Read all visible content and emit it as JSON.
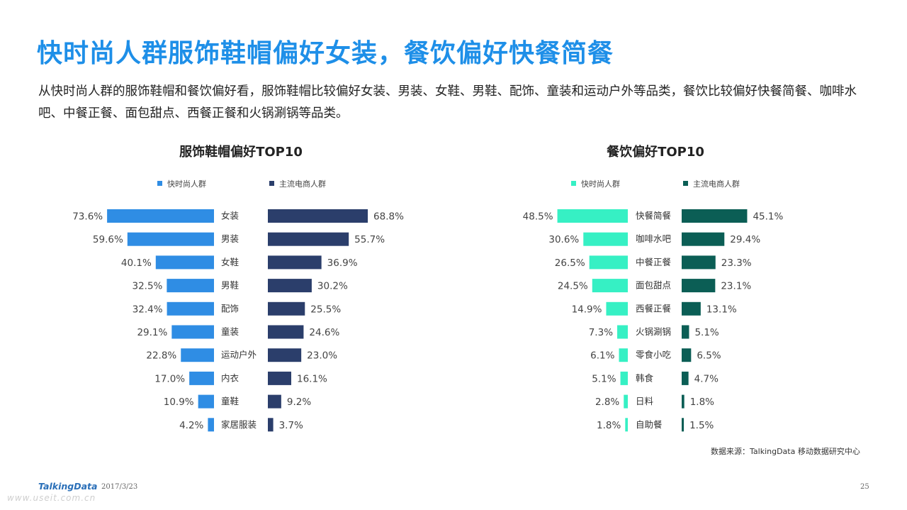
{
  "title": "快时尚人群服饰鞋帽偏好女装，餐饮偏好快餐简餐",
  "description": "从快时尚人群的服饰鞋帽和餐饮偏好看，服饰鞋帽比较偏好女装、男装、女鞋、男鞋、配饰、童装和运动户外等品类，餐饮比较偏好快餐简餐、咖啡水吧、中餐正餐、面包甜点、西餐正餐和火锅涮锅等品类。",
  "source": "数据来源：TalkingData 移动数据研究中心",
  "footer": {
    "logo": "TalkingData",
    "date": "2017/3/23",
    "page": "25",
    "watermark": "www.useit.com.cn"
  },
  "chart_data": [
    {
      "type": "bar",
      "title": "服饰鞋帽偏好TOP10",
      "categories": [
        "女装",
        "男装",
        "女鞋",
        "男鞋",
        "配饰",
        "童装",
        "运动户外",
        "内衣",
        "童鞋",
        "家居服装"
      ],
      "series": [
        {
          "name": "快时尚人群",
          "color": "#2f8de4",
          "values": [
            73.6,
            59.6,
            40.1,
            32.5,
            32.4,
            29.1,
            22.8,
            17.0,
            10.9,
            4.2
          ],
          "labels": [
            "73.6%",
            "59.6%",
            "40.1%",
            "32.5%",
            "32.4%",
            "29.1%",
            "22.8%",
            "17.0%",
            "10.9%",
            "4.2%"
          ]
        },
        {
          "name": "主流电商人群",
          "color": "#2b3e6b",
          "values": [
            68.8,
            55.7,
            36.9,
            30.2,
            25.5,
            24.6,
            23.0,
            16.1,
            9.2,
            3.7
          ],
          "labels": [
            "68.8%",
            "55.7%",
            "36.9%",
            "30.2%",
            "25.5%",
            "24.6%",
            "23.0%",
            "16.1%",
            "9.2%",
            "3.7%"
          ]
        }
      ],
      "legend_position": "top",
      "grid": false
    },
    {
      "type": "bar",
      "title": "餐饮偏好TOP10",
      "categories": [
        "快餐简餐",
        "咖啡水吧",
        "中餐正餐",
        "面包甜点",
        "西餐正餐",
        "火锅涮锅",
        "零食小吃",
        "韩食",
        "日料",
        "自助餐"
      ],
      "series": [
        {
          "name": "快时尚人群",
          "color": "#36f0c4",
          "values": [
            48.5,
            30.6,
            26.5,
            24.5,
            14.9,
            7.3,
            6.1,
            5.1,
            2.8,
            1.8
          ],
          "labels": [
            "48.5%",
            "30.6%",
            "26.5%",
            "24.5%",
            "14.9%",
            "7.3%",
            "6.1%",
            "5.1%",
            "2.8%",
            "1.8%"
          ]
        },
        {
          "name": "主流电商人群",
          "color": "#0b5e55",
          "values": [
            45.1,
            29.4,
            23.3,
            23.1,
            13.1,
            5.1,
            6.5,
            4.7,
            1.8,
            1.5
          ],
          "labels": [
            "45.1%",
            "29.4%",
            "23.3%",
            "23.1%",
            "13.1%",
            "5.1%",
            "6.5%",
            "4.7%",
            "1.8%",
            "1.5%"
          ]
        }
      ],
      "legend_position": "top",
      "grid": false
    }
  ]
}
